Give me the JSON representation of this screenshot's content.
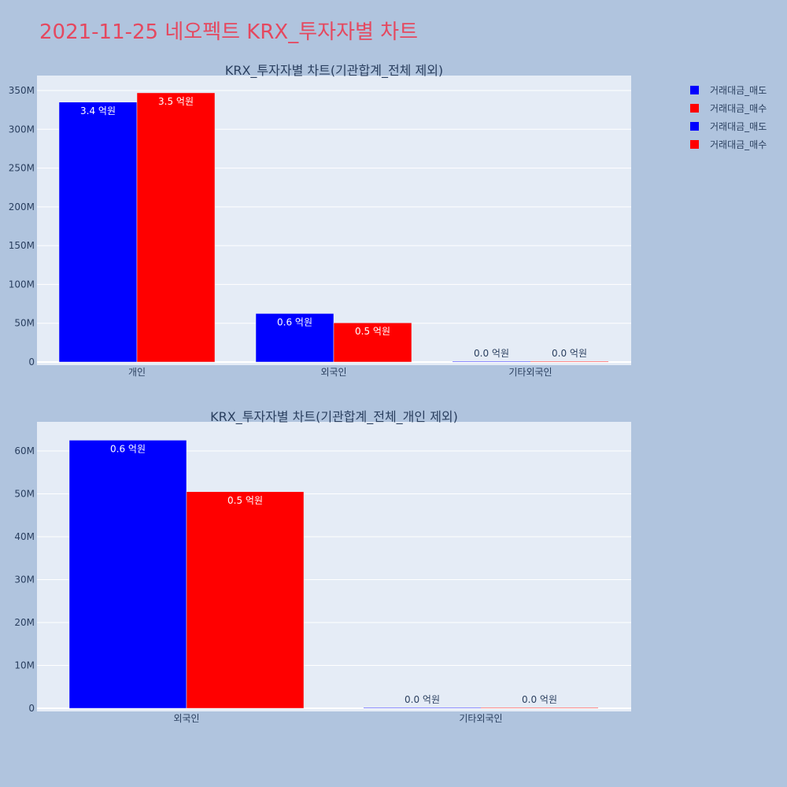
{
  "title": "2021-11-25 네오펙트 KRX_투자자별 차트",
  "colors": {
    "page_bg": "#b0c4de",
    "plot_bg": "#e5ecf6",
    "title": "#e5485f",
    "text": "#2a3f5f",
    "grid": "#ffffff",
    "sell": "#0000ff",
    "buy": "#ff0000"
  },
  "legend": {
    "items": [
      {
        "label": "거래대금_매도",
        "color": "#0000ff"
      },
      {
        "label": "거래대금_매수",
        "color": "#ff0000"
      },
      {
        "label": "거래대금_매도",
        "color": "#0000ff"
      },
      {
        "label": "거래대금_매수",
        "color": "#ff0000"
      }
    ],
    "placement": "top-right"
  },
  "chart_data": [
    {
      "type": "bar",
      "title": "KRX_투자자별 차트(기관합계_전체 제외)",
      "categories": [
        "개인",
        "외국인",
        "기타외국인"
      ],
      "series": [
        {
          "name": "거래대금_매도",
          "color": "#0000ff",
          "values": [
            335000000,
            62500000,
            0
          ],
          "labels": [
            "3.4 억원",
            "0.6 억원",
            "0.0 억원"
          ]
        },
        {
          "name": "거래대금_매수",
          "color": "#ff0000",
          "values": [
            347000000,
            50500000,
            0
          ],
          "labels": [
            "3.5 억원",
            "0.5 억원",
            "0.0 억원"
          ]
        }
      ],
      "yticks": [
        "0",
        "50M",
        "100M",
        "150M",
        "200M",
        "250M",
        "300M",
        "350M"
      ],
      "ylim": [
        0,
        350000000
      ],
      "grid": true
    },
    {
      "type": "bar",
      "title": "KRX_투자자별 차트(기관합계_전체_개인 제외)",
      "categories": [
        "외국인",
        "기타외국인"
      ],
      "series": [
        {
          "name": "거래대금_매도",
          "color": "#0000ff",
          "values": [
            62500000,
            0
          ],
          "labels": [
            "0.6 억원",
            "0.0 억원"
          ]
        },
        {
          "name": "거래대금_매수",
          "color": "#ff0000",
          "values": [
            50500000,
            0
          ],
          "labels": [
            "0.5 억원",
            "0.0 억원"
          ]
        }
      ],
      "yticks": [
        "0",
        "10M",
        "20M",
        "30M",
        "40M",
        "50M",
        "60M"
      ],
      "ylim": [
        0,
        60000000
      ],
      "grid": true
    }
  ]
}
